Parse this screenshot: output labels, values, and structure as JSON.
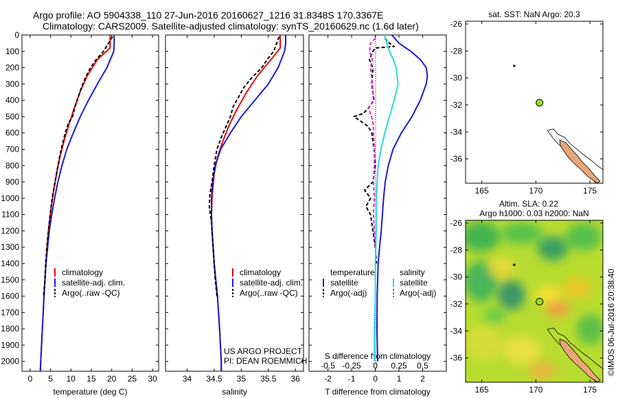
{
  "header": {
    "line1": "Argo profile: AO 5904338_110 27-Jun-2016 20160627_1216 31.8348S 170.3367E",
    "line2": "Climatology: CARS2009. Satellite-adjusted climatology: synTS_20160629.nc (1.6d later)"
  },
  "colors": {
    "climatology": "#ee0000",
    "satellite": "#1a1ad6",
    "argo": "#000000",
    "cyan": "#22dddd",
    "magenta": "#dd22dd",
    "land": "#e8a878",
    "coast": "#000000",
    "marker": "#99dd22"
  },
  "chart_data": [
    {
      "id": "temperature",
      "type": "line",
      "xlabel": "temperature (deg C)",
      "ylabel": "",
      "xlim": [
        -2,
        31.5
      ],
      "ylim": [
        2060,
        0
      ],
      "xticks": [
        0,
        5,
        10,
        15,
        20,
        25,
        30
      ],
      "yticks": [
        0,
        100,
        200,
        300,
        400,
        500,
        600,
        700,
        800,
        900,
        1000,
        1100,
        1200,
        1300,
        1400,
        1500,
        1600,
        1700,
        1800,
        1900,
        2000
      ],
      "legend": [
        "climatology",
        "satellite-adj. clim.",
        "Argo(..raw -QC)"
      ],
      "series": [
        {
          "name": "climatology",
          "color": "#ee0000",
          "dash": "",
          "depth": [
            0,
            80,
            150,
            250,
            350,
            450,
            550,
            650,
            750,
            850,
            950,
            1050,
            1150,
            1250,
            1400,
            1600,
            1800,
            2000,
            2060
          ],
          "values": [
            19.6,
            19.6,
            16.5,
            14.0,
            12.2,
            10.8,
            9.5,
            8.3,
            7.3,
            6.5,
            5.8,
            5.2,
            4.7,
            4.3,
            3.9,
            3.4,
            3.0,
            2.6,
            2.5
          ]
        },
        {
          "name": "satellite-adj. clim.",
          "color": "#1a1ad6",
          "dash": "",
          "depth": [
            0,
            50,
            100,
            200,
            300,
            400,
            500,
            600,
            700,
            800,
            900,
            1000,
            1100,
            1200,
            1400,
            1600,
            1800,
            2000,
            2060
          ],
          "values": [
            20.6,
            20.6,
            20.5,
            18.8,
            16.5,
            14.3,
            12.3,
            10.6,
            9.0,
            7.8,
            6.8,
            6.0,
            5.3,
            4.7,
            3.9,
            3.4,
            3.0,
            2.6,
            2.5
          ]
        },
        {
          "name": "Argo(..raw -QC)",
          "color": "#000000",
          "dash": "5,3",
          "depth": [
            10,
            100,
            150,
            200,
            260,
            320,
            380,
            440,
            500,
            540,
            600,
            700,
            800,
            900,
            1000,
            1100,
            1200,
            1300,
            1400,
            1500,
            1600
          ],
          "values": [
            20.2,
            18.0,
            16.2,
            14.8,
            13.6,
            12.6,
            11.8,
            11.0,
            10.4,
            9.4,
            8.6,
            7.6,
            6.8,
            6.1,
            5.4,
            4.9,
            4.5,
            4.1,
            3.8,
            3.6,
            3.3
          ]
        }
      ]
    },
    {
      "id": "salinity",
      "type": "line",
      "xlabel": "salinity",
      "xlim": [
        33.6,
        36.15
      ],
      "ylim": [
        2060,
        0
      ],
      "xticks": [
        34,
        34.5,
        35,
        35.5,
        36
      ],
      "legend": [
        "climatology",
        "satellite-adj. clim.",
        "Argo(..raw -QC)"
      ],
      "series": [
        {
          "name": "climatology",
          "color": "#ee0000",
          "dash": "",
          "depth": [
            0,
            80,
            150,
            250,
            350,
            450,
            550,
            650,
            750,
            850,
            1000,
            1100,
            1200,
            1400,
            1600,
            1800,
            2000,
            2060
          ],
          "values": [
            35.72,
            35.72,
            35.55,
            35.3,
            35.1,
            34.93,
            34.78,
            34.66,
            34.56,
            34.5,
            34.46,
            34.45,
            34.46,
            34.5,
            34.56,
            34.6,
            34.63,
            34.63
          ]
        },
        {
          "name": "satellite-adj. clim.",
          "color": "#1a1ad6",
          "dash": "",
          "depth": [
            0,
            50,
            100,
            200,
            300,
            400,
            500,
            600,
            700,
            800,
            900,
            1000,
            1100,
            1200,
            1400,
            1600,
            1800,
            2000,
            2060
          ],
          "values": [
            35.82,
            35.82,
            35.8,
            35.68,
            35.5,
            35.25,
            35.0,
            34.8,
            34.62,
            34.52,
            34.47,
            34.45,
            34.45,
            34.46,
            34.5,
            34.56,
            34.6,
            34.63,
            34.63
          ]
        },
        {
          "name": "Argo(..raw -QC)",
          "color": "#000000",
          "dash": "5,3",
          "depth": [
            10,
            100,
            150,
            200,
            260,
            320,
            380,
            440,
            500,
            560,
            620,
            700,
            800,
            900,
            980,
            1050,
            1150,
            1250,
            1400,
            1500,
            1600
          ],
          "values": [
            35.7,
            35.6,
            35.48,
            35.38,
            35.2,
            35.05,
            34.95,
            34.85,
            34.8,
            34.72,
            34.64,
            34.55,
            34.5,
            34.46,
            34.42,
            34.41,
            34.45,
            34.47,
            34.5,
            34.52,
            34.55
          ]
        }
      ]
    },
    {
      "id": "difference",
      "type": "line",
      "xlabel": "T difference from climatology",
      "xlabel2": "S difference from climatology",
      "xlim": [
        -2.8,
        3.0
      ],
      "ylim": [
        2060,
        0
      ],
      "xticks": [
        -2,
        -1,
        0,
        1,
        2
      ],
      "xticks2": [
        -0.5,
        -0.25,
        0,
        0.25,
        0.5
      ],
      "legend_headers": [
        "temperature",
        "salinity"
      ],
      "legend": [
        "satellite",
        "Argo(-adj)",
        "satellite",
        "Argo(-adj)"
      ],
      "series": [
        {
          "name": "T satellite",
          "color": "#1a1ad6",
          "dash": "",
          "depth": [
            0,
            50,
            100,
            150,
            200,
            250,
            300,
            400,
            500,
            600,
            700,
            800,
            900,
            1000,
            1100,
            1200,
            1300,
            1400,
            1500,
            1600,
            1800,
            2000
          ],
          "values": [
            0.7,
            1.0,
            1.5,
            1.9,
            2.15,
            2.2,
            2.15,
            1.9,
            1.55,
            1.1,
            0.75,
            0.55,
            0.42,
            0.35,
            0.3,
            0.25,
            0.18,
            0.12,
            0.1,
            0.08,
            0.07,
            0.1
          ]
        },
        {
          "name": "T Argo(-adj)",
          "color": "#000000",
          "dash": "5,3",
          "depth": [
            20,
            50,
            70,
            80,
            100,
            150,
            200,
            300,
            400,
            450,
            480,
            500,
            530,
            560,
            600,
            700,
            800,
            900,
            950,
            1000,
            1050,
            1100,
            1200,
            1300,
            1400
          ],
          "values": [
            0.4,
            0.6,
            0.8,
            0.0,
            -0.1,
            -0.25,
            -0.1,
            -0.15,
            -0.05,
            -0.3,
            -0.5,
            -0.9,
            -0.6,
            -0.3,
            -0.15,
            -0.05,
            0.0,
            -0.1,
            -0.45,
            -0.2,
            -0.4,
            -0.2,
            -0.1,
            0.0,
            0.05
          ]
        },
        {
          "name": "S satellite",
          "color": "#22dddd",
          "dash": "",
          "depth": [
            0,
            50,
            100,
            150,
            200,
            300,
            400,
            500,
            600,
            700,
            800,
            900,
            1000,
            1200,
            1400,
            1600,
            1800,
            2000
          ],
          "values": [
            0.1,
            0.12,
            0.15,
            0.19,
            0.22,
            0.24,
            0.2,
            0.15,
            0.1,
            0.06,
            0.03,
            0.02,
            0.01,
            0.01,
            0.0,
            0.0,
            -0.01,
            -0.01
          ]
        },
        {
          "name": "S Argo(-adj)",
          "color": "#dd22dd",
          "dash": "5,3",
          "depth": [
            20,
            50,
            100,
            150,
            200,
            300,
            400,
            450,
            500,
            550,
            600,
            700,
            800,
            900,
            1000,
            1100,
            1200,
            1300
          ],
          "values": [
            0.0,
            -0.05,
            -0.06,
            -0.03,
            -0.05,
            -0.03,
            -0.02,
            -0.07,
            -0.04,
            -0.02,
            -0.02,
            -0.01,
            -0.01,
            -0.02,
            -0.01,
            -0.02,
            -0.01,
            0.0
          ]
        }
      ]
    },
    {
      "id": "sst-map",
      "type": "scatter",
      "title": "sat. SST: NaN Argo: 20.3",
      "xlim": [
        163.5,
        176.2
      ],
      "ylim": [
        -37.8,
        -25.8
      ],
      "xticks": [
        165,
        170,
        175
      ],
      "yticks": [
        -26,
        -28,
        -30,
        -32,
        -34,
        -36
      ],
      "points": [
        {
          "name": "argo",
          "lon": 170.34,
          "lat": -31.83
        },
        {
          "name": "dot",
          "lon": 168.0,
          "lat": -29.1
        }
      ]
    },
    {
      "id": "sla-map",
      "type": "heatmap",
      "title": "Altim. SLA: 0.22",
      "subtitle": "Argo h1000: 0.03 h2000: NaN",
      "xlim": [
        163.5,
        176.2
      ],
      "ylim": [
        -37.8,
        -25.8
      ],
      "xticks": [
        165,
        170,
        175
      ],
      "yticks": [
        -26,
        -28,
        -30,
        -32,
        -34,
        -36
      ],
      "points": [
        {
          "name": "argo",
          "lon": 170.34,
          "lat": -31.83
        },
        {
          "name": "dot",
          "lon": 168.0,
          "lat": -29.1
        }
      ]
    }
  ],
  "panels": {
    "temperature": {
      "legend": [
        "climatology",
        "satellite-adj. clim.",
        "Argo(..raw -QC)"
      ]
    },
    "salinity": {
      "legend": [
        "climatology",
        "satellite-adj. clim.",
        "Argo(..raw -QC)"
      ],
      "note1": "US ARGO PROJECT",
      "note2": "PI: DEAN ROEMMICH"
    },
    "difference": {
      "head_t": "temperature",
      "head_s": "salinity",
      "legend": [
        "satellite",
        "Argo(-adj)",
        "satellite",
        "Argo(-adj)"
      ]
    }
  },
  "maps": {
    "sst_title": "sat. SST: NaN Argo: 20.3",
    "sla_title": "Altim. SLA: 0.22",
    "sla_subtitle": "Argo h1000: 0.03 h2000: NaN"
  },
  "stamp": "©IMOS 06-Jul-2016 20:38:40"
}
